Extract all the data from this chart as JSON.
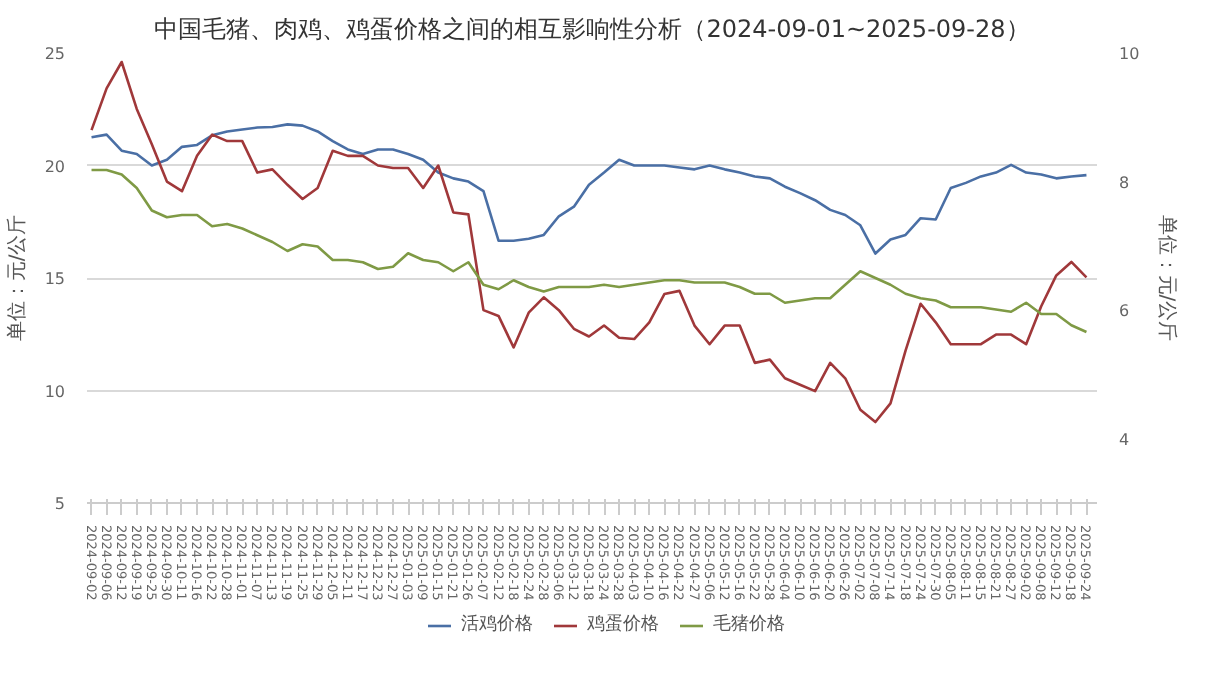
{
  "chart_data": {
    "type": "line",
    "title": "中国毛猪、肉鸡、鸡蛋价格之间的相互影响性分析（2024-09-01~2025-09-28）",
    "ylabel": "单位：元/公斤",
    "y2label": "单位：元/公斤",
    "categories": [
      "2024-09-02",
      "2024-09-06",
      "2024-09-12",
      "2024-09-19",
      "2024-09-25",
      "2024-09-30",
      "2024-10-11",
      "2024-10-16",
      "2024-10-22",
      "2024-10-28",
      "2024-11-01",
      "2024-11-07",
      "2024-11-13",
      "2024-11-19",
      "2024-11-25",
      "2024-11-29",
      "2024-12-05",
      "2024-12-11",
      "2024-12-17",
      "2024-12-23",
      "2024-12-27",
      "2025-01-03",
      "2025-01-09",
      "2025-01-15",
      "2025-01-21",
      "2025-01-26",
      "2025-02-07",
      "2025-02-12",
      "2025-02-18",
      "2025-02-24",
      "2025-02-28",
      "2025-03-06",
      "2025-03-12",
      "2025-03-18",
      "2025-03-24",
      "2025-03-28",
      "2025-04-03",
      "2025-04-10",
      "2025-04-16",
      "2025-04-22",
      "2025-04-27",
      "2025-05-06",
      "2025-05-12",
      "2025-05-16",
      "2025-05-22",
      "2025-05-28",
      "2025-06-04",
      "2025-06-10",
      "2025-06-16",
      "2025-06-20",
      "2025-06-26",
      "2025-07-02",
      "2025-07-08",
      "2025-07-14",
      "2025-07-18",
      "2025-07-24",
      "2025-07-30",
      "2025-08-05",
      "2025-08-11",
      "2025-08-15",
      "2025-08-21",
      "2025-08-27",
      "2025-09-02",
      "2025-09-08",
      "2025-09-12",
      "2025-09-18",
      "2025-09-24"
    ],
    "series": [
      {
        "name": "活鸡价格",
        "color": "#4a6fa5",
        "axis": "y2",
        "values": [
          8.69,
          8.73,
          8.48,
          8.43,
          8.25,
          8.34,
          8.54,
          8.57,
          8.72,
          8.78,
          8.81,
          8.84,
          8.85,
          8.89,
          8.87,
          8.78,
          8.63,
          8.5,
          8.43,
          8.5,
          8.5,
          8.43,
          8.34,
          8.14,
          8.05,
          8.0,
          7.85,
          7.08,
          7.08,
          7.11,
          7.17,
          7.46,
          7.61,
          7.95,
          8.14,
          8.34,
          8.25,
          8.25,
          8.25,
          8.22,
          8.19,
          8.25,
          8.19,
          8.14,
          8.08,
          8.05,
          7.92,
          7.82,
          7.71,
          7.56,
          7.48,
          7.32,
          6.88,
          7.1,
          7.17,
          7.43,
          7.41,
          7.9,
          7.98,
          8.08,
          8.14,
          8.26,
          8.14,
          8.11,
          8.05,
          8.08,
          8.1
        ]
      },
      {
        "name": "鸡蛋价格",
        "color": "#a0383a",
        "axis": "y2",
        "values": [
          8.8,
          9.45,
          9.86,
          9.13,
          8.58,
          8.0,
          7.85,
          8.4,
          8.73,
          8.63,
          8.63,
          8.14,
          8.19,
          7.95,
          7.73,
          7.9,
          8.48,
          8.4,
          8.4,
          8.25,
          8.21,
          8.21,
          7.9,
          8.25,
          7.52,
          7.49,
          6.0,
          5.91,
          5.42,
          5.96,
          6.2,
          6.0,
          5.71,
          5.59,
          5.76,
          5.57,
          5.55,
          5.81,
          6.25,
          6.3,
          5.76,
          5.47,
          5.76,
          5.76,
          5.18,
          5.23,
          4.94,
          4.84,
          4.74,
          5.18,
          4.94,
          4.45,
          4.26,
          4.55,
          5.37,
          6.1,
          5.81,
          5.47,
          5.47,
          5.47,
          5.62,
          5.62,
          5.47,
          6.06,
          6.54,
          6.75,
          6.51
        ]
      },
      {
        "name": "毛猪价格",
        "color": "#7f9a45",
        "values": [
          19.8,
          19.8,
          19.6,
          19.0,
          18.0,
          17.7,
          17.8,
          17.8,
          17.3,
          17.4,
          17.2,
          16.9,
          16.6,
          16.2,
          16.5,
          16.4,
          15.8,
          15.8,
          15.7,
          15.4,
          15.5,
          16.1,
          15.8,
          15.7,
          15.3,
          15.7,
          14.7,
          14.5,
          14.9,
          14.6,
          14.4,
          14.6,
          14.6,
          14.6,
          14.7,
          14.6,
          14.7,
          14.8,
          14.9,
          14.9,
          14.8,
          14.8,
          14.8,
          14.6,
          14.3,
          14.3,
          13.9,
          14.0,
          14.1,
          14.1,
          14.7,
          15.3,
          15.0,
          14.7,
          14.3,
          14.1,
          14.0,
          13.7,
          13.7,
          13.7,
          13.6,
          13.5,
          13.9,
          13.4,
          13.4,
          12.9,
          12.6
        ]
      }
    ],
    "ylim": [
      5,
      25
    ],
    "yticks": [
      5,
      10,
      15,
      20,
      25
    ],
    "y2lim": [
      3,
      10
    ],
    "y2ticks": [
      4,
      6,
      8,
      10
    ],
    "grid": "y",
    "legend": "bottom",
    "marker": "none",
    "line_style": "solid"
  }
}
